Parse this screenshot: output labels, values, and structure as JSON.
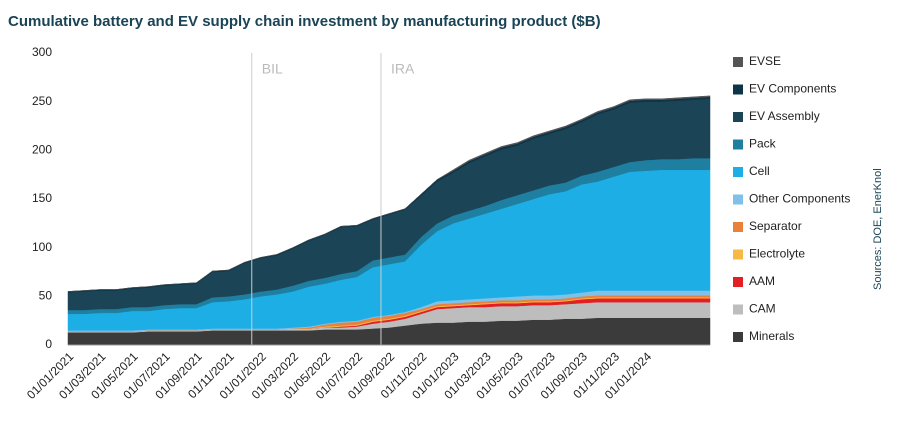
{
  "chart_data": {
    "type": "stacked_area",
    "title": "Cumulative battery and EV supply chain investment by manufacturing product ($B)",
    "source": "Sources: DOE, EnerKnol",
    "annotations": [
      "BIL",
      "IRA"
    ],
    "categories": [
      "01/01/2021",
      null,
      "01/03/2021",
      null,
      "01/05/2021",
      null,
      "01/07/2021",
      null,
      "01/09/2021",
      null,
      "01/11/2021",
      null,
      "01/01/2022",
      null,
      "01/03/2022",
      null,
      "01/05/2022",
      null,
      "01/07/2022",
      null,
      "01/09/2022",
      null,
      "01/11/2022",
      null,
      "01/01/2023",
      null,
      "01/03/2023",
      null,
      "01/05/2023",
      null,
      "01/07/2023",
      null,
      "01/09/2023",
      null,
      "01/11/2023",
      null,
      "01/01/2024",
      null,
      null,
      null,
      null
    ],
    "ylim": [
      0,
      300
    ],
    "yticks": [
      0,
      50,
      100,
      150,
      200,
      250,
      300
    ],
    "grid": false,
    "series": [
      {
        "name": "Minerals",
        "color": "#3b3b3b",
        "values": [
          13,
          13,
          13,
          13,
          13,
          14,
          14,
          14,
          14,
          15,
          15,
          15,
          15,
          15,
          15,
          15,
          16,
          16,
          16,
          17,
          18,
          20,
          22,
          23,
          23,
          24,
          24,
          25,
          25,
          26,
          26,
          27,
          27,
          28,
          28,
          28,
          28,
          28,
          28,
          28,
          28
        ]
      },
      {
        "name": "CAM",
        "color": "#bdbdbd",
        "values": [
          1,
          1,
          1,
          1,
          1,
          1,
          1,
          1,
          1,
          1,
          1,
          1,
          1,
          1,
          2,
          2,
          2,
          2,
          3,
          5,
          6,
          7,
          10,
          14,
          15,
          15,
          15,
          15,
          15,
          15,
          15,
          15,
          16,
          16,
          16,
          16,
          16,
          16,
          16,
          16,
          16
        ]
      },
      {
        "name": "AAM",
        "color": "#e31e24",
        "values": [
          0,
          0,
          0,
          0,
          0,
          0,
          0,
          0,
          0,
          0,
          0,
          0,
          0,
          0,
          0,
          0,
          0,
          1,
          1,
          2,
          2,
          2,
          2,
          2,
          2,
          2,
          3,
          3,
          3,
          3,
          3,
          3,
          4,
          4,
          4,
          4,
          4,
          4,
          4,
          4,
          4
        ]
      },
      {
        "name": "Electrolyte",
        "color": "#f7b943",
        "values": [
          0,
          0,
          0,
          0,
          0,
          0,
          0,
          0,
          0,
          0,
          0,
          0,
          0,
          0,
          0,
          0,
          1,
          1,
          1,
          1,
          1,
          1,
          1,
          1,
          1,
          1,
          1,
          1,
          1,
          1,
          1,
          1,
          1,
          1,
          1,
          1,
          1,
          1,
          1,
          1,
          1
        ]
      },
      {
        "name": "Separator",
        "color": "#e8823a",
        "values": [
          0,
          0,
          0,
          0,
          0,
          0,
          0,
          0,
          0,
          0,
          0,
          0,
          0,
          0,
          0,
          1,
          2,
          3,
          3,
          3,
          3,
          3,
          2,
          2,
          2,
          2,
          2,
          2,
          2,
          2,
          2,
          2,
          2,
          2,
          2,
          2,
          2,
          2,
          2,
          2,
          2
        ]
      },
      {
        "name": "Other Components",
        "color": "#7fc1e8",
        "values": [
          1,
          1,
          1,
          1,
          1,
          1,
          1,
          1,
          1,
          1,
          1,
          1,
          1,
          1,
          1,
          1,
          1,
          1,
          1,
          1,
          1,
          1,
          2,
          3,
          3,
          3,
          3,
          3,
          4,
          4,
          4,
          4,
          4,
          5,
          5,
          5,
          5,
          5,
          5,
          5,
          5
        ]
      },
      {
        "name": "Cell",
        "color": "#1eaee6",
        "values": [
          17,
          17,
          18,
          18,
          20,
          19,
          21,
          22,
          22,
          27,
          28,
          30,
          33,
          35,
          37,
          41,
          41,
          43,
          45,
          51,
          52,
          52,
          64,
          72,
          79,
          83,
          87,
          91,
          95,
          99,
          104,
          106,
          111,
          112,
          117,
          122,
          123,
          124,
          124,
          124,
          124
        ]
      },
      {
        "name": "Pack",
        "color": "#1f7fa0",
        "values": [
          4,
          4,
          4,
          4,
          4,
          4,
          4,
          4,
          4,
          5,
          5,
          5,
          5,
          5,
          6,
          6,
          6,
          6,
          6,
          7,
          7,
          7,
          8,
          8,
          8,
          8,
          8,
          9,
          9,
          9,
          9,
          9,
          9,
          10,
          10,
          10,
          11,
          11,
          11,
          12,
          12
        ]
      },
      {
        "name": "EV Assembly",
        "color": "#1b4457",
        "values": [
          18,
          19,
          19,
          19,
          19,
          20,
          20,
          20,
          21,
          26,
          26,
          32,
          34,
          35,
          38,
          41,
          44,
          48,
          46,
          42,
          44,
          46,
          42,
          43,
          44,
          49,
          51,
          52,
          51,
          53,
          53,
          55,
          55,
          59,
          59,
          61,
          60,
          59,
          60,
          60,
          61
        ]
      },
      {
        "name": "EV Components",
        "color": "#0e3547",
        "values": [
          1,
          1,
          1,
          1,
          1,
          1,
          1,
          1,
          1,
          1,
          1,
          1,
          1,
          1,
          1,
          1,
          1,
          1,
          1,
          1,
          1,
          1,
          2,
          2,
          2,
          2,
          2,
          2,
          2,
          2,
          2,
          2,
          2,
          2,
          2,
          2,
          2,
          2,
          2,
          2,
          2
        ]
      },
      {
        "name": "EVSE",
        "color": "#555555",
        "values": [
          0,
          0,
          0,
          0,
          0,
          0,
          0,
          0,
          0,
          0,
          0,
          0,
          0,
          0,
          0,
          0,
          0,
          0,
          0,
          0,
          0,
          0,
          0,
          0,
          1,
          1,
          1,
          1,
          1,
          1,
          1,
          1,
          1,
          1,
          1,
          1,
          1,
          1,
          1,
          1,
          1
        ]
      }
    ]
  }
}
